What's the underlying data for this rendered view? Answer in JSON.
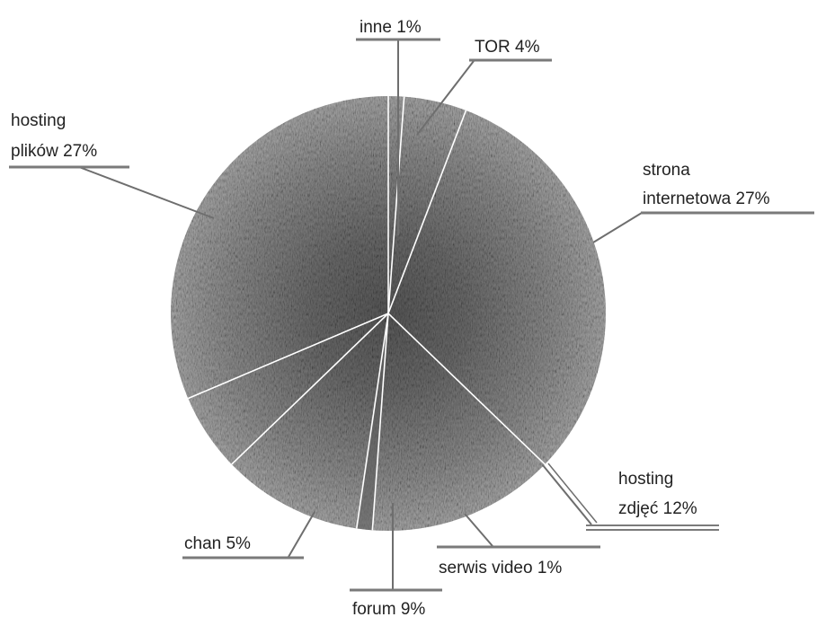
{
  "chart_data": {
    "type": "pie",
    "title": "",
    "slices": [
      {
        "label": "inne 1%",
        "value": 1
      },
      {
        "label": "TOR 4%",
        "value": 4
      },
      {
        "label": "strona internetowa 27%",
        "value": 27
      },
      {
        "label": "hosting zdjęć 12%",
        "value": 12
      },
      {
        "label": "serwis video 1%",
        "value": 1
      },
      {
        "label": "forum 9%",
        "value": 9
      },
      {
        "label": "chan 5%",
        "value": 5
      },
      {
        "label": "hosting plików 27%",
        "value": 27
      }
    ],
    "label_lines": {
      "inne": [
        "inne 1%"
      ],
      "tor": [
        "TOR 4%"
      ],
      "strona": [
        "strona",
        "internetowa  27%"
      ],
      "hosting_zdjec": [
        "hosting",
        "zdjęć 12%"
      ],
      "serwis": [
        "serwis video 1%"
      ],
      "forum": [
        "forum  9%"
      ],
      "chan": [
        "chan 5%"
      ],
      "hosting_plikow": [
        "hosting",
        "plików 27%"
      ]
    },
    "colors": {
      "pie_fill": "#8c8c8c",
      "pie_dark": "#5e5e5e",
      "leader": "#6e6e6e",
      "underline": "#7a7a7a",
      "text": "#222222"
    }
  }
}
